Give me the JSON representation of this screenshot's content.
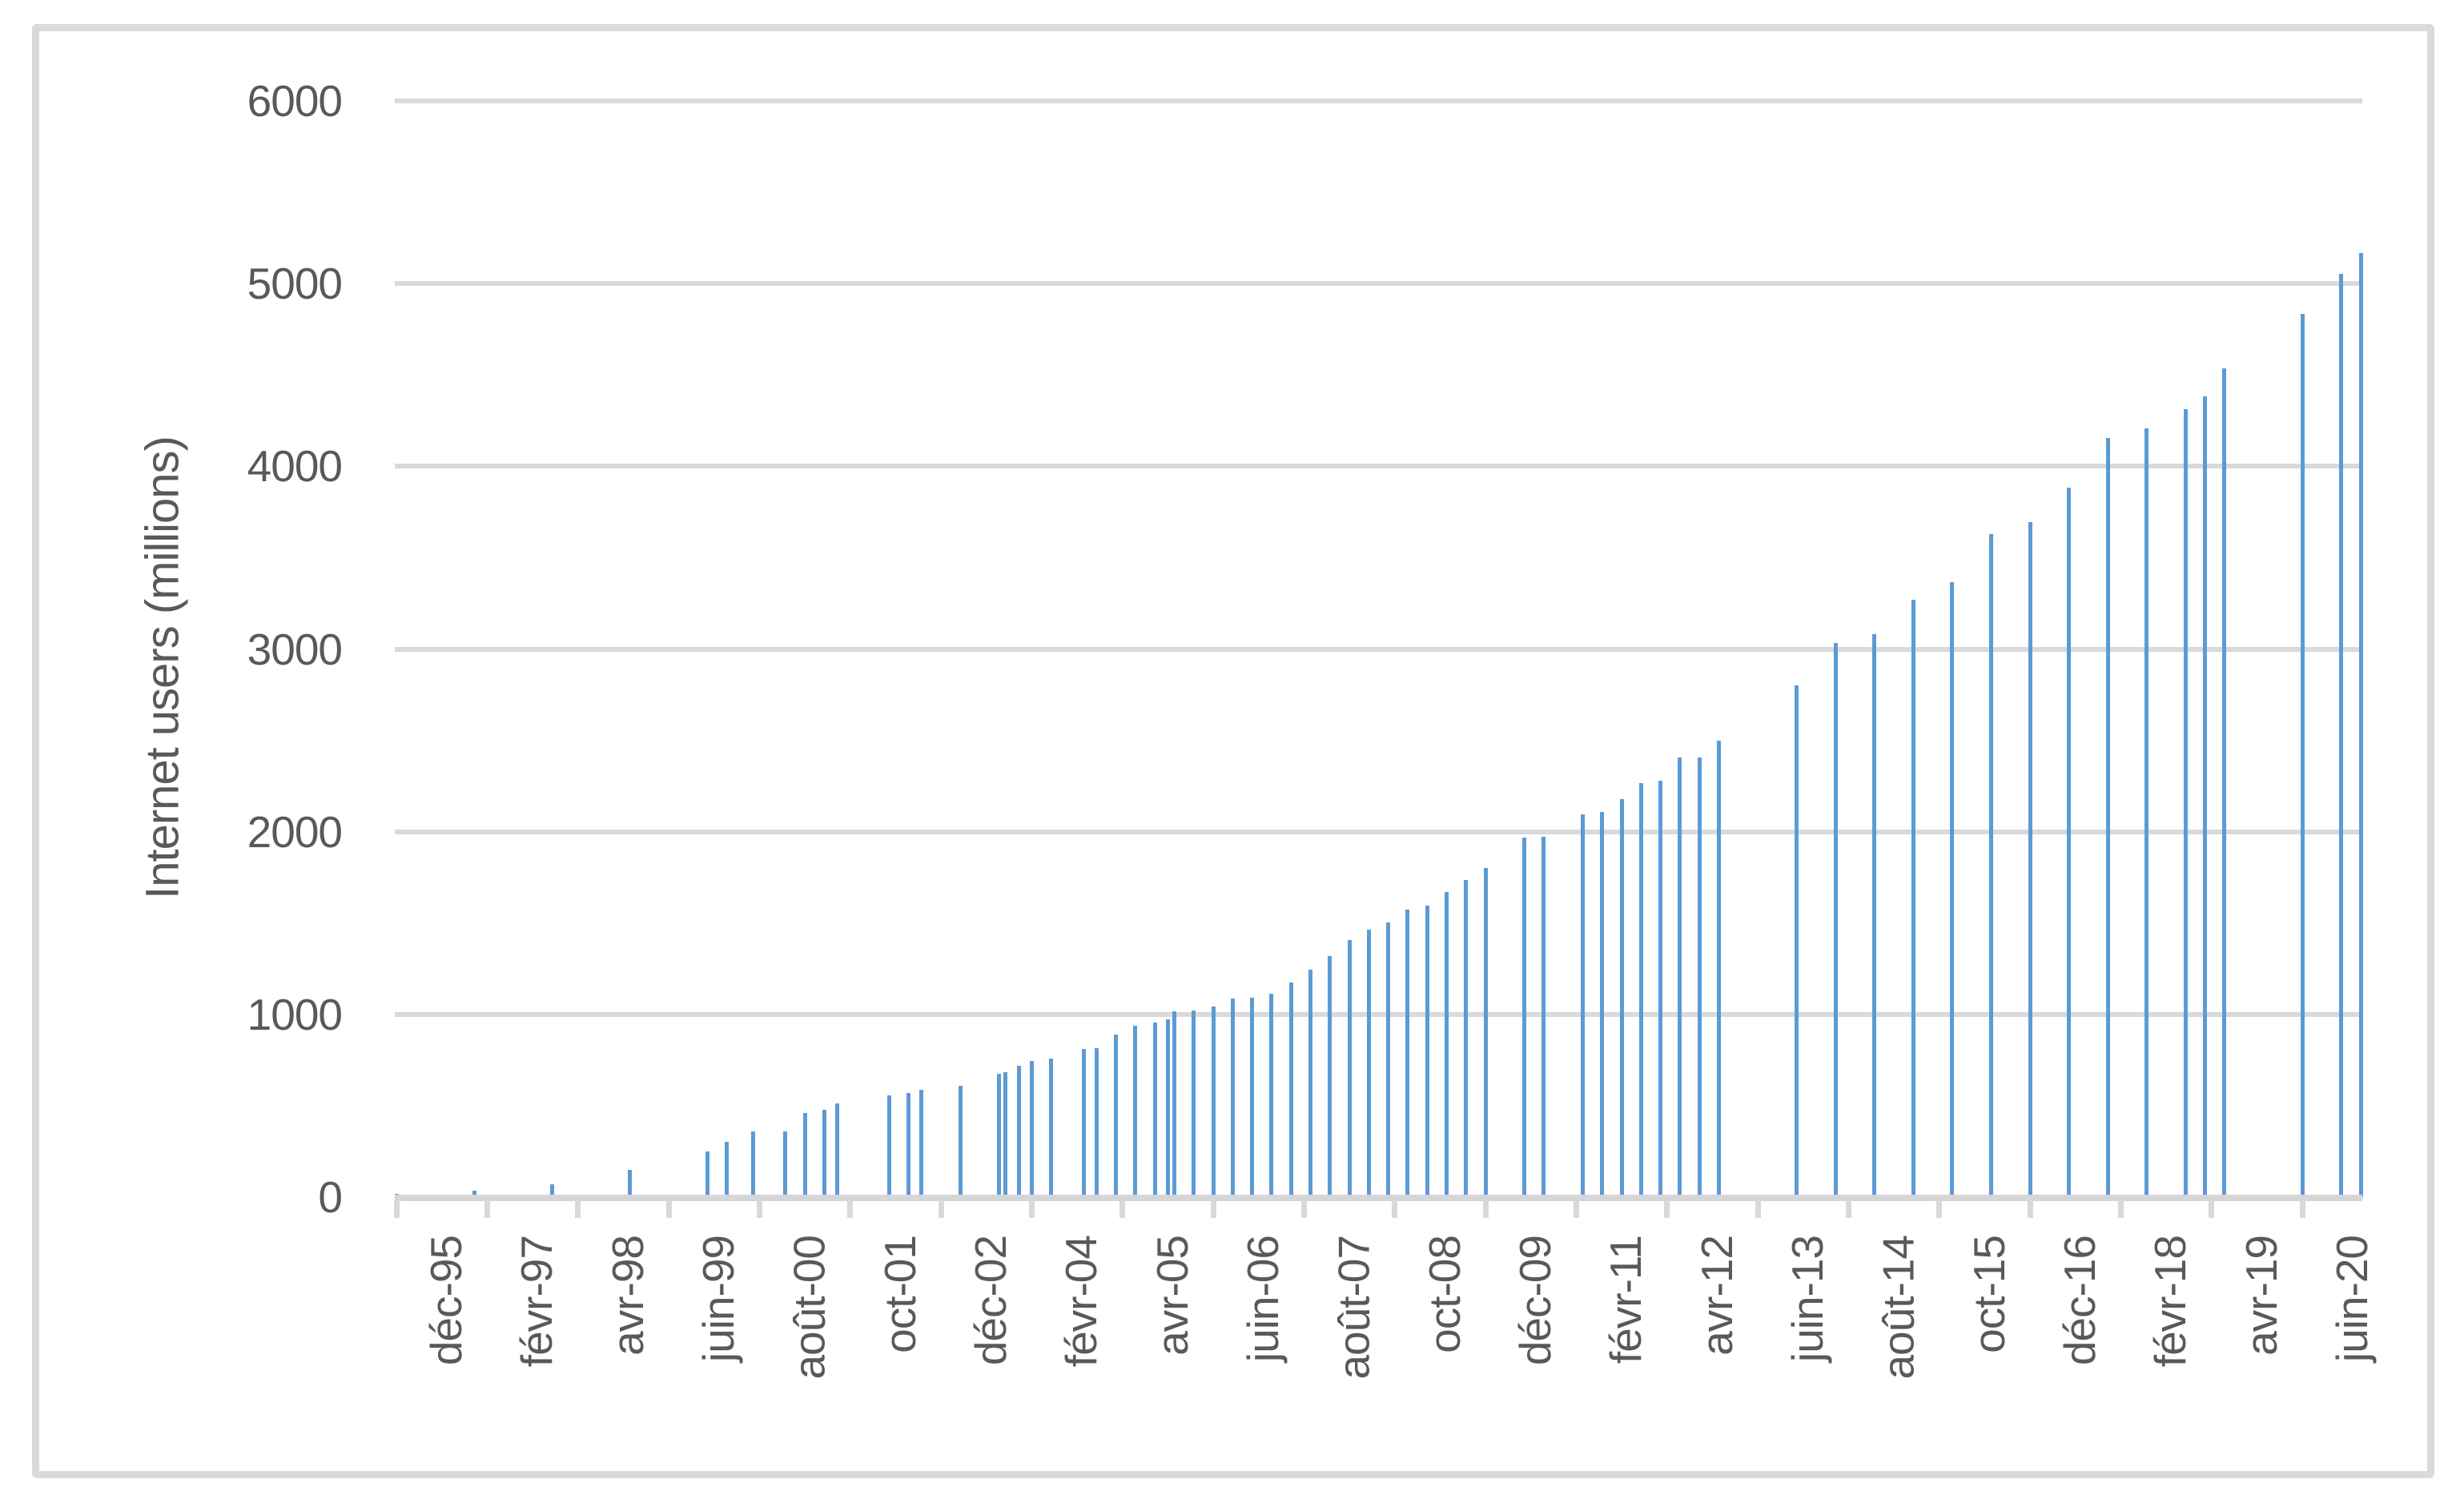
{
  "colors": {
    "bar": "#5b9bd5",
    "gridline": "#d9d9d9",
    "axis_line": "#d6d6d6",
    "text": "#595959",
    "frame_border": "#dadada",
    "background": "#ffffff"
  },
  "chart_data": {
    "type": "bar",
    "title": "",
    "xlabel": "",
    "ylabel": "Internet users (millions)",
    "ylim": [
      0,
      6000
    ],
    "y_ticks": [
      0,
      1000,
      2000,
      3000,
      4000,
      5000,
      6000
    ],
    "y_tick_labels": [
      "0",
      "1000",
      "2000",
      "3000",
      "4000",
      "5000",
      "6000"
    ],
    "grid": true,
    "legend": false,
    "x_axis_type": "date",
    "x_start": "1995-12",
    "x_end": "2021-03",
    "x_tick_interval_months": 14,
    "x_tick_labels": [
      "déc-95",
      "févr-97",
      "avr-98",
      "juin-99",
      "août-00",
      "oct-01",
      "déc-02",
      "févr-04",
      "avr-05",
      "juin-06",
      "août-07",
      "oct-08",
      "déc-09",
      "févr-11",
      "avr-12",
      "juin-13",
      "août-14",
      "oct-15",
      "déc-16",
      "févr-18",
      "avr-19",
      "juin-20"
    ],
    "series": [
      {
        "name": "Internet users (millions)",
        "points": [
          {
            "date": "1995-12",
            "value": 16
          },
          {
            "date": "1996-12",
            "value": 36
          },
          {
            "date": "1997-12",
            "value": 70
          },
          {
            "date": "1998-12",
            "value": 147
          },
          {
            "date": "1999-12",
            "value": 248
          },
          {
            "date": "2000-03",
            "value": 304
          },
          {
            "date": "2000-07",
            "value": 359
          },
          {
            "date": "2000-12",
            "value": 361
          },
          {
            "date": "2001-03",
            "value": 458
          },
          {
            "date": "2001-06",
            "value": 479
          },
          {
            "date": "2001-08",
            "value": 513
          },
          {
            "date": "2002-04",
            "value": 558
          },
          {
            "date": "2002-07",
            "value": 569
          },
          {
            "date": "2002-09",
            "value": 587
          },
          {
            "date": "2003-03",
            "value": 608
          },
          {
            "date": "2003-09",
            "value": 677
          },
          {
            "date": "2003-10",
            "value": 682
          },
          {
            "date": "2003-12",
            "value": 719
          },
          {
            "date": "2004-02",
            "value": 745
          },
          {
            "date": "2004-05",
            "value": 757
          },
          {
            "date": "2004-10",
            "value": 812
          },
          {
            "date": "2004-12",
            "value": 817
          },
          {
            "date": "2005-03",
            "value": 888
          },
          {
            "date": "2005-06",
            "value": 938
          },
          {
            "date": "2005-09",
            "value": 957
          },
          {
            "date": "2005-11",
            "value": 972
          },
          {
            "date": "2005-12",
            "value": 1018
          },
          {
            "date": "2006-03",
            "value": 1023
          },
          {
            "date": "2006-06",
            "value": 1043
          },
          {
            "date": "2006-09",
            "value": 1086
          },
          {
            "date": "2006-12",
            "value": 1093
          },
          {
            "date": "2007-03",
            "value": 1114
          },
          {
            "date": "2007-06",
            "value": 1173
          },
          {
            "date": "2007-09",
            "value": 1245
          },
          {
            "date": "2007-12",
            "value": 1319
          },
          {
            "date": "2008-03",
            "value": 1407
          },
          {
            "date": "2008-06",
            "value": 1463
          },
          {
            "date": "2008-09",
            "value": 1504
          },
          {
            "date": "2008-12",
            "value": 1574
          },
          {
            "date": "2009-03",
            "value": 1596
          },
          {
            "date": "2009-06",
            "value": 1669
          },
          {
            "date": "2009-09",
            "value": 1734
          },
          {
            "date": "2009-12",
            "value": 1802
          },
          {
            "date": "2010-06",
            "value": 1966
          },
          {
            "date": "2010-09",
            "value": 1971
          },
          {
            "date": "2011-03",
            "value": 2095
          },
          {
            "date": "2011-06",
            "value": 2110
          },
          {
            "date": "2011-09",
            "value": 2180
          },
          {
            "date": "2011-12",
            "value": 2267
          },
          {
            "date": "2012-03",
            "value": 2280
          },
          {
            "date": "2012-06",
            "value": 2405
          },
          {
            "date": "2012-09",
            "value": 2406
          },
          {
            "date": "2012-12",
            "value": 2497
          },
          {
            "date": "2013-12",
            "value": 2802
          },
          {
            "date": "2014-06",
            "value": 3035
          },
          {
            "date": "2014-12",
            "value": 3079
          },
          {
            "date": "2015-06",
            "value": 3270
          },
          {
            "date": "2015-12",
            "value": 3366
          },
          {
            "date": "2016-06",
            "value": 3631
          },
          {
            "date": "2016-12",
            "value": 3696
          },
          {
            "date": "2017-06",
            "value": 3885
          },
          {
            "date": "2017-12",
            "value": 4156
          },
          {
            "date": "2018-06",
            "value": 4208
          },
          {
            "date": "2018-12",
            "value": 4313
          },
          {
            "date": "2019-03",
            "value": 4383
          },
          {
            "date": "2019-06",
            "value": 4536
          },
          {
            "date": "2020-06",
            "value": 4833
          },
          {
            "date": "2020-12",
            "value": 5053
          },
          {
            "date": "2021-03",
            "value": 5168
          }
        ]
      }
    ]
  }
}
